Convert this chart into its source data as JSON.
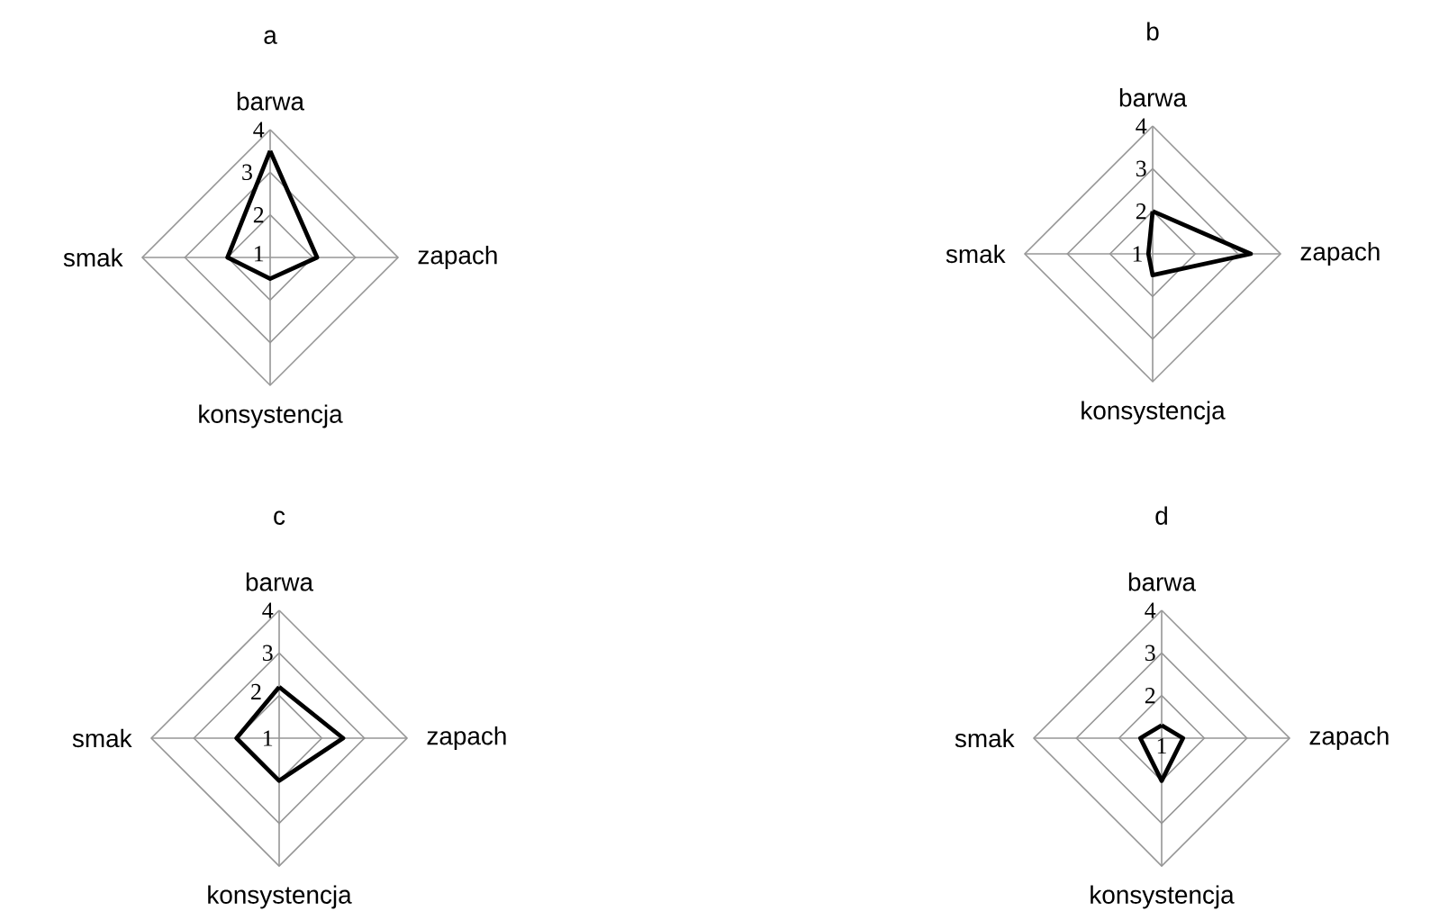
{
  "chart_data": [
    {
      "type": "radar",
      "title": "a",
      "categories": [
        "barwa",
        "zapach",
        "konsystencja",
        "smak"
      ],
      "ylim": [
        1,
        4
      ],
      "yticks": [
        1,
        2,
        3,
        4
      ],
      "grid": true,
      "series": [
        {
          "color": "#000000",
          "values": [
            3.5,
            2.1,
            1.5,
            2.0
          ]
        }
      ]
    },
    {
      "type": "radar",
      "title": "b",
      "categories": [
        "barwa",
        "zapach",
        "konsystencja",
        "smak"
      ],
      "ylim": [
        1,
        4
      ],
      "yticks": [
        1,
        2,
        3,
        4
      ],
      "grid": true,
      "series": [
        {
          "color": "#000000",
          "values": [
            2.0,
            3.3,
            1.5,
            1.1
          ]
        }
      ]
    },
    {
      "type": "radar",
      "title": "c",
      "categories": [
        "barwa",
        "zapach",
        "konsystencja",
        "smak"
      ],
      "ylim": [
        1,
        4
      ],
      "yticks": [
        1,
        2,
        3,
        4
      ],
      "grid": true,
      "series": [
        {
          "color": "#000000",
          "values": [
            2.2,
            2.5,
            2.0,
            2.0
          ]
        }
      ]
    },
    {
      "type": "radar",
      "title": "d",
      "categories": [
        "barwa",
        "zapach",
        "konsystencja",
        "smak"
      ],
      "ylim": [
        1,
        4
      ],
      "yticks": [
        1,
        2,
        3,
        4
      ],
      "grid": true,
      "series": [
        {
          "color": "#000000",
          "values": [
            1.3,
            1.5,
            2.0,
            1.5
          ]
        }
      ]
    }
  ]
}
